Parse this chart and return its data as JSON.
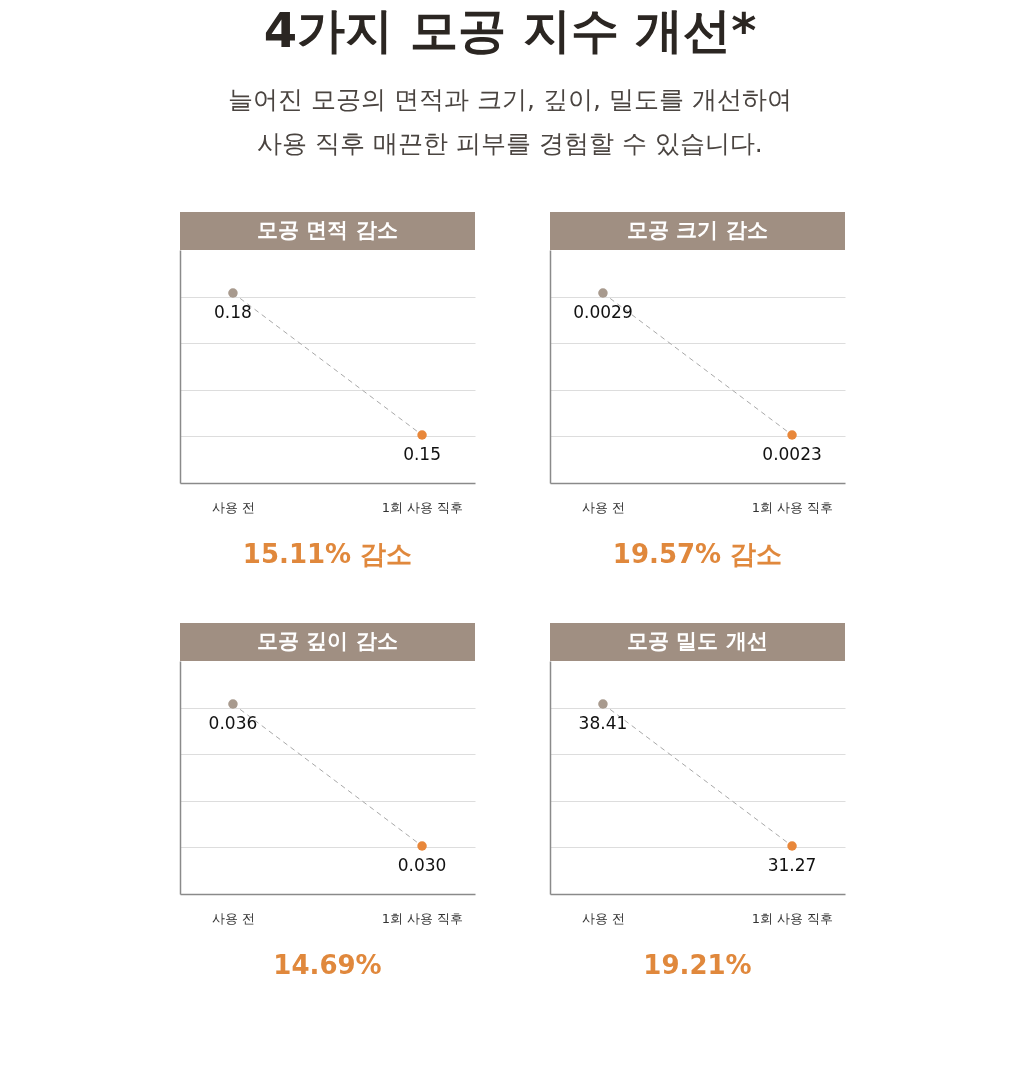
{
  "chart_data": [
    {
      "type": "other",
      "title": "4가지 모공 지수 개선*",
      "subtitle": "늘어진 모공의 면적과 크기, 깊이, 밀도를 개선하여\n사용 직후 매끈한 피부를 경험할 수 있습니다."
    },
    {
      "type": "line",
      "title": "모공 면적 감소",
      "categories": [
        "사용 전",
        "1회 사용 직후"
      ],
      "series": [
        {
          "color": "#a9a9a9",
          "colors": [
            "#a89a8e",
            "#e8873a"
          ],
          "values": [
            0.18,
            0.15
          ],
          "value_labels": [
            "0.18",
            "0.15"
          ]
        }
      ],
      "line_style": "dashed",
      "marker": "circle",
      "grid": "y",
      "tick_labels": "x",
      "annotations": [
        "15.11% 감소"
      ]
    },
    {
      "type": "line",
      "title": "모공 크기 감소",
      "categories": [
        "사용 전",
        "1회 사용 직후"
      ],
      "series": [
        {
          "color": "#a9a9a9",
          "colors": [
            "#a89a8e",
            "#e8873a"
          ],
          "values": [
            0.0029,
            0.0023
          ],
          "value_labels": [
            "0.0029",
            "0.0023"
          ]
        }
      ],
      "line_style": "dashed",
      "marker": "circle",
      "grid": "y",
      "tick_labels": "x",
      "annotations": [
        "19.57% 감소"
      ]
    },
    {
      "type": "line",
      "title": "모공 깊이 감소",
      "categories": [
        "사용 전",
        "1회 사용 직후"
      ],
      "series": [
        {
          "color": "#a9a9a9",
          "colors": [
            "#a89a8e",
            "#e8873a"
          ],
          "values": [
            0.036,
            0.03
          ],
          "value_labels": [
            "0.036",
            "0.030"
          ]
        }
      ],
      "line_style": "dashed",
      "marker": "circle",
      "grid": "y",
      "tick_labels": "x",
      "annotations": [
        "14.69%"
      ]
    },
    {
      "type": "line",
      "title": "모공 밀도 개선",
      "categories": [
        "사용 전",
        "1회 사용 직후"
      ],
      "series": [
        {
          "color": "#a9a9a9",
          "colors": [
            "#a89a8e",
            "#e8873a"
          ],
          "values": [
            38.41,
            31.27
          ],
          "value_labels": [
            "38.41",
            "31.27"
          ]
        }
      ],
      "line_style": "dashed",
      "marker": "circle",
      "grid": "y",
      "tick_labels": "x",
      "annotations": [
        "19.21%"
      ]
    }
  ]
}
